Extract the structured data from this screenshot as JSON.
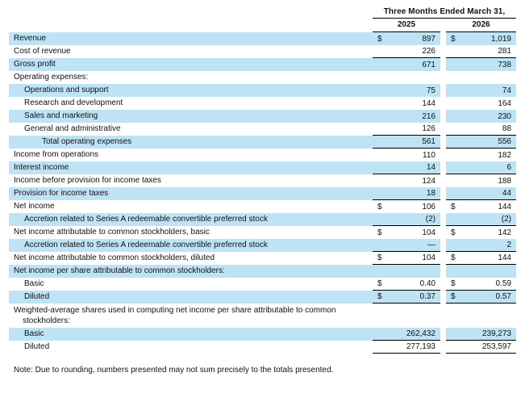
{
  "table": {
    "header": {
      "period_label": "Three Months Ended March 31,",
      "col_2025": "2025",
      "col_2026": "2026"
    },
    "rows": [
      {
        "label": "Revenue",
        "indent": 0,
        "shaded": true,
        "cur": "$",
        "v1": "897",
        "v2": "1,019",
        "border": false
      },
      {
        "label": "Cost of revenue",
        "indent": 0,
        "shaded": false,
        "cur": "",
        "v1": "226",
        "v2": "281",
        "border": true
      },
      {
        "label": "Gross profit",
        "indent": 0,
        "shaded": true,
        "cur": "",
        "v1": "671",
        "v2": "738",
        "border": false
      },
      {
        "label": "Operating expenses:",
        "indent": 0,
        "shaded": false,
        "cur": "",
        "v1": "",
        "v2": "",
        "border": false
      },
      {
        "label": "Operations and support",
        "indent": 1,
        "shaded": true,
        "cur": "",
        "v1": "75",
        "v2": "74",
        "border": false
      },
      {
        "label": "Research and development",
        "indent": 1,
        "shaded": false,
        "cur": "",
        "v1": "144",
        "v2": "164",
        "border": false
      },
      {
        "label": "Sales and marketing",
        "indent": 1,
        "shaded": true,
        "cur": "",
        "v1": "216",
        "v2": "230",
        "border": false
      },
      {
        "label": "General and administrative",
        "indent": 1,
        "shaded": false,
        "cur": "",
        "v1": "126",
        "v2": "88",
        "border": true
      },
      {
        "label": "Total operating expenses",
        "indent": 2,
        "shaded": true,
        "cur": "",
        "v1": "561",
        "v2": "556",
        "border": true
      },
      {
        "label": "Income from operations",
        "indent": 0,
        "shaded": false,
        "cur": "",
        "v1": "110",
        "v2": "182",
        "border": false
      },
      {
        "label": "Interest income",
        "indent": 0,
        "shaded": true,
        "cur": "",
        "v1": "14",
        "v2": "6",
        "border": true
      },
      {
        "label": "Income before provision for income taxes",
        "indent": 0,
        "shaded": false,
        "cur": "",
        "v1": "124",
        "v2": "188",
        "border": false
      },
      {
        "label": "Provision for income taxes",
        "indent": 0,
        "shaded": true,
        "cur": "",
        "v1": "18",
        "v2": "44",
        "border": true
      },
      {
        "label": "Net income",
        "indent": 0,
        "shaded": false,
        "cur": "$",
        "v1": "106",
        "v2": "144",
        "border": false
      },
      {
        "label": "Accretion related to Series A redeemable convertible preferred stock",
        "indent": 1,
        "shaded": true,
        "cur": "",
        "v1": "(2)",
        "v2": "(2)",
        "border": true
      },
      {
        "label": "Net income attributable to common stockholders, basic",
        "indent": 0,
        "shaded": false,
        "cur": "$",
        "v1": "104",
        "v2": "142",
        "border": false
      },
      {
        "label": "Accretion related to Series A redeemable convertible preferred stock",
        "indent": 1,
        "shaded": true,
        "cur": "",
        "v1": "—",
        "v2": "2",
        "border": true
      },
      {
        "label": "Net income attributable to common stockholders, diluted",
        "indent": 0,
        "shaded": false,
        "cur": "$",
        "v1": "104",
        "v2": "144",
        "border": true
      },
      {
        "label": "Net income per share attributable to common stockholders:",
        "indent": 0,
        "shaded": true,
        "cur": "",
        "v1": "",
        "v2": "",
        "border": false
      },
      {
        "label": "Basic",
        "indent": 1,
        "shaded": false,
        "cur": "$",
        "v1": "0.40",
        "v2": "0.59",
        "border": true
      },
      {
        "label": "Diluted",
        "indent": 1,
        "shaded": true,
        "cur": "$",
        "v1": "0.37",
        "v2": "0.57",
        "border": true
      },
      {
        "label": "Weighted-average shares used in computing net income per share attributable to common stockholders:",
        "indent": 0,
        "shaded": false,
        "cur": "",
        "v1": "",
        "v2": "",
        "border": false,
        "wrap": true
      },
      {
        "label": "Basic",
        "indent": 1,
        "shaded": true,
        "cur": "",
        "v1": "262,432",
        "v2": "239,273",
        "border": true
      },
      {
        "label": "Diluted",
        "indent": 1,
        "shaded": false,
        "cur": "",
        "v1": "277,193",
        "v2": "253,597",
        "border": true
      }
    ]
  },
  "note": "Note: Due to rounding, numbers presented may not sum precisely to the totals presented.",
  "colors": {
    "row_highlight": "#BDE3F5",
    "text": "#111111",
    "rule": "#000000"
  }
}
